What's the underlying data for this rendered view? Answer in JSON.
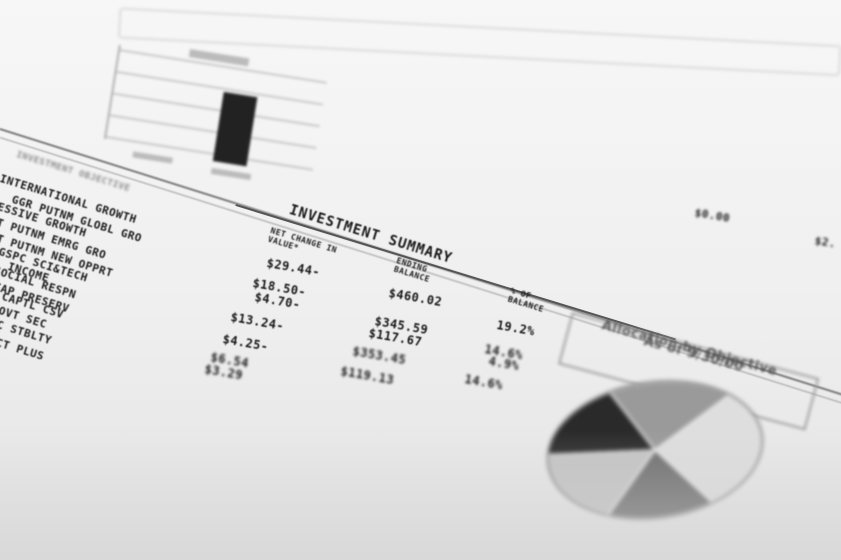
{
  "document": {
    "section_title": "INVESTMENT SUMMARY",
    "funds_header": "INVESTMENT OBJECTIVE",
    "fund_names": [
      "INTERNATIONAL GROWTH",
      "GGR PUTNM GLOBL GRO",
      "GRESSIVE GROWTH",
      "GT PUTNM EMRG GRO",
      "GT PUTNM NEW OPPRT",
      "AGSPC SCI&TECH",
      "INCOME",
      "SOCIAL RESPN",
      "CAP PRESERV",
      "CAPTL CSV",
      "GOVT SEC",
      "NC STBLTY",
      "CT PLUS"
    ],
    "columns": {
      "net_change": "NET CHANGE IN VALUE*",
      "ending_balance": "ENDING BALANCE",
      "pct_balance": "% OF BALANCE"
    },
    "net_change_values": [
      "$29.44-",
      "$18.50-",
      "$4.70-",
      "$13.24-",
      "$4.25-",
      "$6.54",
      "$3.29"
    ],
    "ending_balance_values": [
      "$460.02",
      "$345.59",
      "$117.67",
      "$353.45",
      "$119.13"
    ],
    "pct_values": [
      "19.2%",
      "14.6%",
      "4.9%",
      "14.6%"
    ],
    "right_values": [
      "$0.00",
      "$2."
    ],
    "allocation_title_line1": "Allocation by Objective",
    "allocation_title_line2": "As of 9/30/00"
  },
  "pie_chart": {
    "slice_colors": [
      "#2a2a2a",
      "#9a9a9a",
      "#dedede",
      "#6e6e6e",
      "#c4c4c4"
    ],
    "slice_fractions": [
      0.17,
      0.19,
      0.29,
      0.16,
      0.19
    ]
  },
  "mini_bar_chart": {
    "bar_color": "#222222"
  }
}
